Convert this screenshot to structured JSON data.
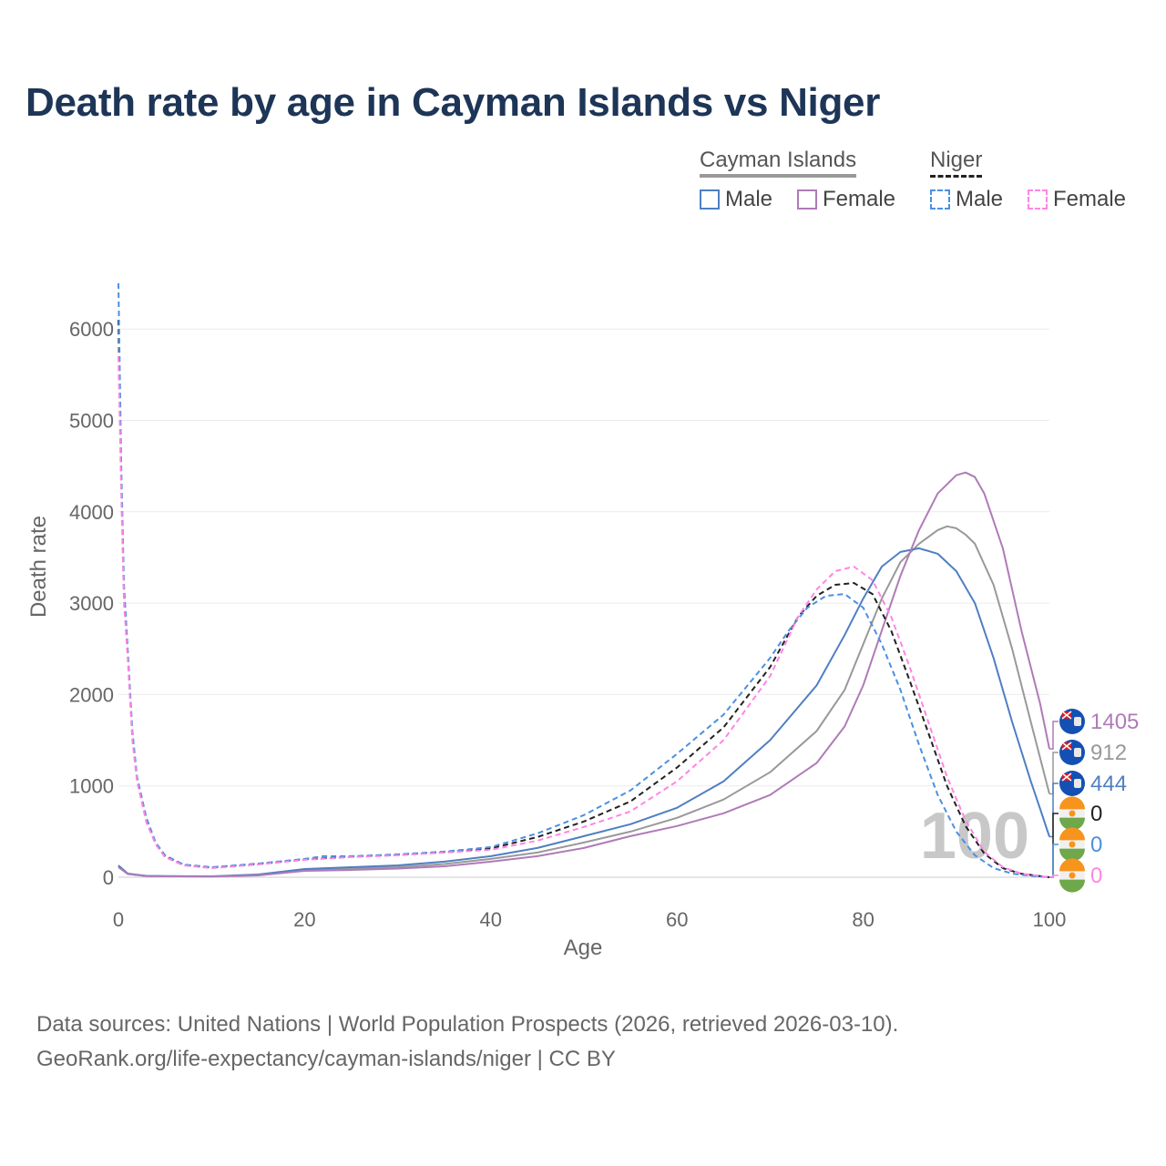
{
  "title": "Death rate by age in Cayman Islands vs Niger",
  "legend": {
    "countries": [
      {
        "name": "Cayman Islands",
        "line_style": "solid",
        "color": "#999999"
      },
      {
        "name": "Niger",
        "line_style": "dashed",
        "color": "#222222"
      }
    ],
    "items": [
      {
        "label": "Male",
        "country": "Cayman Islands",
        "color": "#4f7fc2",
        "style": "solid"
      },
      {
        "label": "Female",
        "country": "Cayman Islands",
        "color": "#b07ab8",
        "style": "solid"
      },
      {
        "label": "Male",
        "country": "Niger",
        "color": "#4a90e2",
        "style": "dashed"
      },
      {
        "label": "Female",
        "country": "Niger",
        "color": "#ff85e4",
        "style": "dashed"
      }
    ]
  },
  "chart_data": {
    "type": "line",
    "title": "Death rate by age in Cayman Islands vs Niger",
    "xlabel": "Age",
    "ylabel": "Death rate",
    "xlim": [
      0,
      100
    ],
    "ylim": [
      0,
      6500
    ],
    "x_ticks": [
      "0",
      "20",
      "40",
      "60",
      "80",
      "100"
    ],
    "y_ticks": [
      "0",
      "1000",
      "2000",
      "3000",
      "4000",
      "5000",
      "6000"
    ],
    "watermark_year": "100",
    "series": [
      {
        "name": "Cayman Islands Male",
        "color": "#4f7fc2",
        "dash": false,
        "end_label": "444",
        "points": [
          [
            0,
            130
          ],
          [
            1,
            40
          ],
          [
            3,
            15
          ],
          [
            5,
            12
          ],
          [
            10,
            10
          ],
          [
            15,
            30
          ],
          [
            20,
            90
          ],
          [
            25,
            110
          ],
          [
            30,
            130
          ],
          [
            35,
            170
          ],
          [
            40,
            230
          ],
          [
            45,
            320
          ],
          [
            50,
            450
          ],
          [
            55,
            580
          ],
          [
            60,
            760
          ],
          [
            65,
            1050
          ],
          [
            70,
            1500
          ],
          [
            75,
            2100
          ],
          [
            78,
            2650
          ],
          [
            80,
            3050
          ],
          [
            82,
            3400
          ],
          [
            84,
            3560
          ],
          [
            86,
            3600
          ],
          [
            88,
            3540
          ],
          [
            90,
            3350
          ],
          [
            92,
            3000
          ],
          [
            94,
            2400
          ],
          [
            96,
            1700
          ],
          [
            98,
            1050
          ],
          [
            99,
            750
          ],
          [
            100,
            444
          ]
        ]
      },
      {
        "name": "Cayman Islands Female",
        "color": "#b07ab8",
        "dash": false,
        "end_label": "1405",
        "points": [
          [
            0,
            110
          ],
          [
            1,
            35
          ],
          [
            3,
            12
          ],
          [
            5,
            10
          ],
          [
            10,
            8
          ],
          [
            15,
            20
          ],
          [
            20,
            70
          ],
          [
            25,
            80
          ],
          [
            30,
            95
          ],
          [
            35,
            120
          ],
          [
            40,
            170
          ],
          [
            45,
            230
          ],
          [
            50,
            320
          ],
          [
            55,
            450
          ],
          [
            60,
            560
          ],
          [
            65,
            700
          ],
          [
            70,
            900
          ],
          [
            75,
            1250
          ],
          [
            78,
            1650
          ],
          [
            80,
            2100
          ],
          [
            82,
            2700
          ],
          [
            84,
            3300
          ],
          [
            86,
            3800
          ],
          [
            88,
            4200
          ],
          [
            90,
            4400
          ],
          [
            91,
            4430
          ],
          [
            92,
            4380
          ],
          [
            93,
            4200
          ],
          [
            95,
            3600
          ],
          [
            97,
            2700
          ],
          [
            99,
            1900
          ],
          [
            100,
            1405
          ]
        ]
      },
      {
        "name": "Cayman Islands Total",
        "color": "#999999",
        "dash": false,
        "end_label": "912",
        "points": [
          [
            0,
            120
          ],
          [
            1,
            38
          ],
          [
            3,
            14
          ],
          [
            5,
            11
          ],
          [
            10,
            9
          ],
          [
            15,
            25
          ],
          [
            20,
            80
          ],
          [
            25,
            95
          ],
          [
            30,
            110
          ],
          [
            35,
            145
          ],
          [
            40,
            200
          ],
          [
            45,
            270
          ],
          [
            50,
            380
          ],
          [
            55,
            500
          ],
          [
            60,
            650
          ],
          [
            65,
            850
          ],
          [
            70,
            1150
          ],
          [
            75,
            1600
          ],
          [
            78,
            2050
          ],
          [
            80,
            2550
          ],
          [
            82,
            3050
          ],
          [
            84,
            3450
          ],
          [
            86,
            3650
          ],
          [
            88,
            3800
          ],
          [
            89,
            3840
          ],
          [
            90,
            3820
          ],
          [
            91,
            3750
          ],
          [
            92,
            3650
          ],
          [
            94,
            3200
          ],
          [
            96,
            2500
          ],
          [
            98,
            1700
          ],
          [
            100,
            912
          ]
        ]
      },
      {
        "name": "Niger Male",
        "color": "#4a90e2",
        "dash": true,
        "end_label": "0",
        "points": [
          [
            0,
            6500
          ],
          [
            0.3,
            4500
          ],
          [
            0.6,
            3200
          ],
          [
            1,
            2500
          ],
          [
            1.5,
            1600
          ],
          [
            2,
            1100
          ],
          [
            3,
            650
          ],
          [
            4,
            380
          ],
          [
            5,
            240
          ],
          [
            7,
            140
          ],
          [
            10,
            110
          ],
          [
            15,
            150
          ],
          [
            20,
            200
          ],
          [
            22,
            230
          ],
          [
            25,
            230
          ],
          [
            30,
            250
          ],
          [
            35,
            280
          ],
          [
            40,
            330
          ],
          [
            45,
            480
          ],
          [
            50,
            680
          ],
          [
            55,
            950
          ],
          [
            60,
            1350
          ],
          [
            65,
            1780
          ],
          [
            70,
            2400
          ],
          [
            72,
            2700
          ],
          [
            74,
            2950
          ],
          [
            76,
            3080
          ],
          [
            78,
            3100
          ],
          [
            80,
            2950
          ],
          [
            82,
            2550
          ],
          [
            84,
            2050
          ],
          [
            86,
            1450
          ],
          [
            88,
            900
          ],
          [
            90,
            500
          ],
          [
            92,
            240
          ],
          [
            94,
            100
          ],
          [
            96,
            40
          ],
          [
            98,
            15
          ],
          [
            100,
            0
          ]
        ]
      },
      {
        "name": "Niger Female",
        "color": "#ff85e4",
        "dash": true,
        "end_label": "0",
        "points": [
          [
            0,
            5700
          ],
          [
            0.3,
            4200
          ],
          [
            0.6,
            3000
          ],
          [
            1,
            2400
          ],
          [
            1.5,
            1500
          ],
          [
            2,
            1050
          ],
          [
            3,
            600
          ],
          [
            4,
            360
          ],
          [
            5,
            220
          ],
          [
            7,
            130
          ],
          [
            10,
            100
          ],
          [
            15,
            140
          ],
          [
            20,
            190
          ],
          [
            25,
            220
          ],
          [
            30,
            240
          ],
          [
            35,
            270
          ],
          [
            40,
            300
          ],
          [
            45,
            400
          ],
          [
            50,
            550
          ],
          [
            55,
            720
          ],
          [
            60,
            1050
          ],
          [
            65,
            1500
          ],
          [
            70,
            2200
          ],
          [
            73,
            2850
          ],
          [
            75,
            3150
          ],
          [
            77,
            3350
          ],
          [
            79,
            3400
          ],
          [
            81,
            3250
          ],
          [
            83,
            2850
          ],
          [
            85,
            2300
          ],
          [
            87,
            1700
          ],
          [
            89,
            1100
          ],
          [
            91,
            620
          ],
          [
            93,
            280
          ],
          [
            95,
            110
          ],
          [
            97,
            40
          ],
          [
            100,
            0
          ]
        ]
      },
      {
        "name": "Niger Total",
        "color": "#222222",
        "dash": true,
        "end_label": "0",
        "points": [
          [
            0,
            6100
          ],
          [
            0.3,
            4350
          ],
          [
            0.6,
            3100
          ],
          [
            1,
            2450
          ],
          [
            1.5,
            1550
          ],
          [
            2,
            1080
          ],
          [
            3,
            620
          ],
          [
            4,
            370
          ],
          [
            5,
            230
          ],
          [
            7,
            135
          ],
          [
            10,
            105
          ],
          [
            15,
            145
          ],
          [
            20,
            195
          ],
          [
            25,
            225
          ],
          [
            30,
            245
          ],
          [
            35,
            275
          ],
          [
            40,
            315
          ],
          [
            45,
            440
          ],
          [
            50,
            610
          ],
          [
            55,
            830
          ],
          [
            60,
            1200
          ],
          [
            65,
            1640
          ],
          [
            70,
            2300
          ],
          [
            73,
            2850
          ],
          [
            75,
            3080
          ],
          [
            77,
            3200
          ],
          [
            79,
            3220
          ],
          [
            81,
            3100
          ],
          [
            83,
            2700
          ],
          [
            85,
            2150
          ],
          [
            87,
            1580
          ],
          [
            89,
            1000
          ],
          [
            91,
            560
          ],
          [
            93,
            260
          ],
          [
            95,
            100
          ],
          [
            97,
            38
          ],
          [
            100,
            0
          ]
        ]
      }
    ]
  },
  "footer": {
    "line1": "Data sources: United Nations | World Population Prospects (2026, retrieved 2026-03-10).",
    "line2": "GeoRank.org/life-expectancy/cayman-islands/niger | CC BY"
  }
}
